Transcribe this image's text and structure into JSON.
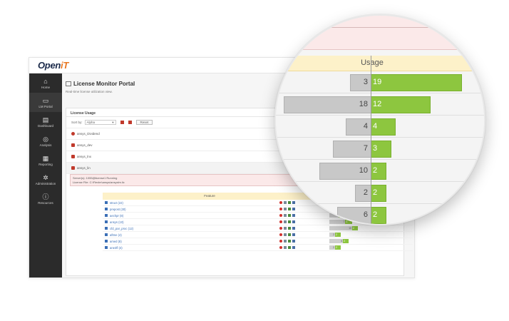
{
  "app": {
    "logo_main": "Open",
    "logo_accent": "iT"
  },
  "sidebar": {
    "items": [
      {
        "label": "Home",
        "icon": "home-icon",
        "glyph": "⌂"
      },
      {
        "label": "LM Portal",
        "icon": "monitor-icon",
        "glyph": "▭"
      },
      {
        "label": "Dashboard",
        "icon": "dashboard-icon",
        "glyph": "▤"
      },
      {
        "label": "Analysis",
        "icon": "compass-icon",
        "glyph": "◎"
      },
      {
        "label": "Reporting",
        "icon": "chart-icon",
        "glyph": "▦"
      },
      {
        "label": "Administration",
        "icon": "gears-icon",
        "glyph": "✲"
      },
      {
        "label": "Resources",
        "icon": "info-icon",
        "glyph": "ⓘ"
      }
    ]
  },
  "page": {
    "title": "License Monitor Portal",
    "subtitle": "Real-time license utilization view."
  },
  "panel": {
    "title": "License Usage",
    "sort_label": "Sort by:",
    "sort_value": "Alpha",
    "reset_label": "Reset"
  },
  "servers": [
    {
      "name": "ansys_Dividend",
      "status": "error"
    },
    {
      "name": "ansys_dev",
      "status": "ok"
    },
    {
      "name": "ansys_lnx",
      "status": "ok"
    },
    {
      "name": "ansys_lin",
      "status": "ok"
    }
  ],
  "server_info": {
    "line1": "Server(s): 1055@license1   Running",
    "line2": "License File: C:\\Flexlm\\ansys\\ansyslm.lic"
  },
  "features": {
    "col_feature": "Feature",
    "col_usage": "Usage",
    "rows": [
      {
        "name": "struct (22)",
        "in_use": 3,
        "free": 19
      },
      {
        "name": "prepost (30)",
        "in_use": 18,
        "free": 12
      },
      {
        "name": "aechpr (8)",
        "in_use": 4,
        "free": 4
      },
      {
        "name": "ansys (10)",
        "in_use": 7,
        "free": 3
      },
      {
        "name": "cfd_par_proc (12)",
        "in_use": 10,
        "free": 2
      },
      {
        "name": "aftme (4)",
        "in_use": 2,
        "free": 2
      },
      {
        "name": "amed (8)",
        "in_use": 6,
        "free": 2
      },
      {
        "name": "ane3fl (4)",
        "in_use": 2,
        "free": 2
      }
    ]
  },
  "magnifier": {
    "header": "Usage",
    "rows": [
      {
        "in_use": 3,
        "free": 19
      },
      {
        "in_use": 18,
        "free": 12
      },
      {
        "in_use": 4,
        "free": 4
      },
      {
        "in_use": 7,
        "free": 3
      },
      {
        "in_use": 10,
        "free": 2
      },
      {
        "in_use": 2,
        "free": 2
      },
      {
        "in_use": 6,
        "free": 2
      }
    ]
  },
  "colors": {
    "in_use": "#c8c8c8",
    "free": "#8dc63f",
    "header": "#fdf1c9",
    "alert": "#fbe9e9"
  }
}
